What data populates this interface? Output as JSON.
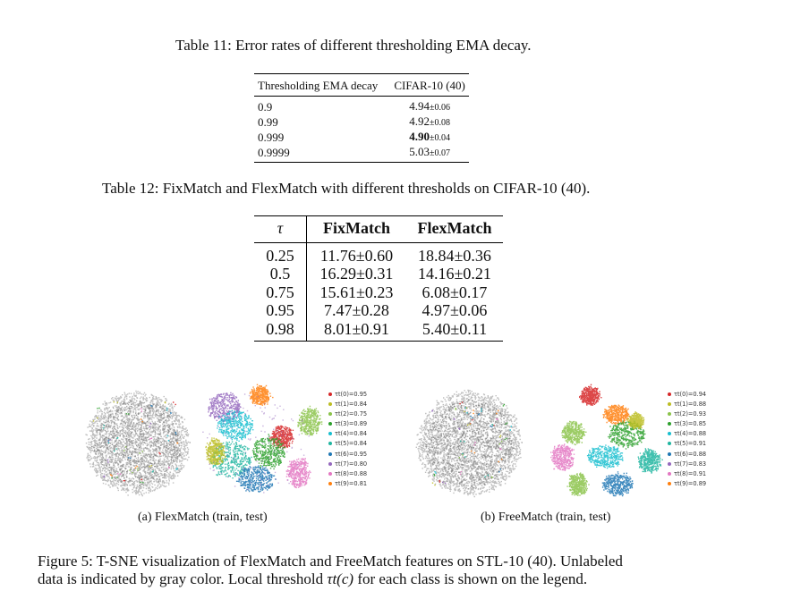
{
  "table11": {
    "caption": "Table 11: Error rates of different thresholding EMA decay.",
    "headers": [
      "Thresholding EMA decay",
      "CIFAR-10 (40)"
    ],
    "rows": [
      {
        "decay": "0.9",
        "value": "4.94",
        "std": "±0.06",
        "bold": false
      },
      {
        "decay": "0.99",
        "value": "4.92",
        "std": "±0.08",
        "bold": false
      },
      {
        "decay": "0.999",
        "value": "4.90",
        "std": "±0.04",
        "bold": true
      },
      {
        "decay": "0.9999",
        "value": "5.03",
        "std": "±0.07",
        "bold": false
      }
    ]
  },
  "table12": {
    "caption": "Table 12: FixMatch and FlexMatch with different thresholds on CIFAR-10 (40).",
    "headers": [
      "τ",
      "FixMatch",
      "FlexMatch"
    ],
    "rows": [
      [
        "0.25",
        "11.76±0.60",
        "18.84±0.36"
      ],
      [
        "0.5",
        "16.29±0.31",
        "14.16±0.21"
      ],
      [
        "0.75",
        "15.61±0.23",
        "6.08±0.17"
      ],
      [
        "0.95",
        "7.47±0.28",
        "4.97±0.06"
      ],
      [
        "0.98",
        "8.01±0.91",
        "5.40±0.11"
      ]
    ]
  },
  "figure": {
    "class_colors": [
      "#d62728",
      "#bcbd22",
      "#8bc34a",
      "#2ca02c",
      "#17becf",
      "#1fb5a0",
      "#1f77b4",
      "#9467bd",
      "#e377c2",
      "#ff7f0e"
    ],
    "panels": [
      {
        "subcaption": "(a) FlexMatch (train, test)",
        "legend": [
          "τt(0)=0.95",
          "τt(1)=0.84",
          "τt(2)=0.75",
          "τt(3)=0.89",
          "τt(4)=0.84",
          "τt(5)=0.84",
          "τt(6)=0.95",
          "τt(7)=0.80",
          "τt(8)=0.88",
          "τt(9)=0.81"
        ]
      },
      {
        "subcaption": "(b) FreeMatch (train, test)",
        "legend": [
          "τt(0)=0.94",
          "τt(1)=0.88",
          "τt(2)=0.93",
          "τt(3)=0.85",
          "τt(4)=0.88",
          "τt(5)=0.91",
          "τt(6)=0.88",
          "τt(7)=0.83",
          "τt(8)=0.91",
          "τt(9)=0.89"
        ]
      }
    ],
    "caption_line1": "Figure 5: T-SNE visualization of FlexMatch and FreeMatch features on STL-10 (40). Unlabeled",
    "caption_line2_pre": "data is indicated by gray color. Local threshold ",
    "caption_math": "τt(c)",
    "caption_line2_post": " for each class is shown on the legend."
  }
}
